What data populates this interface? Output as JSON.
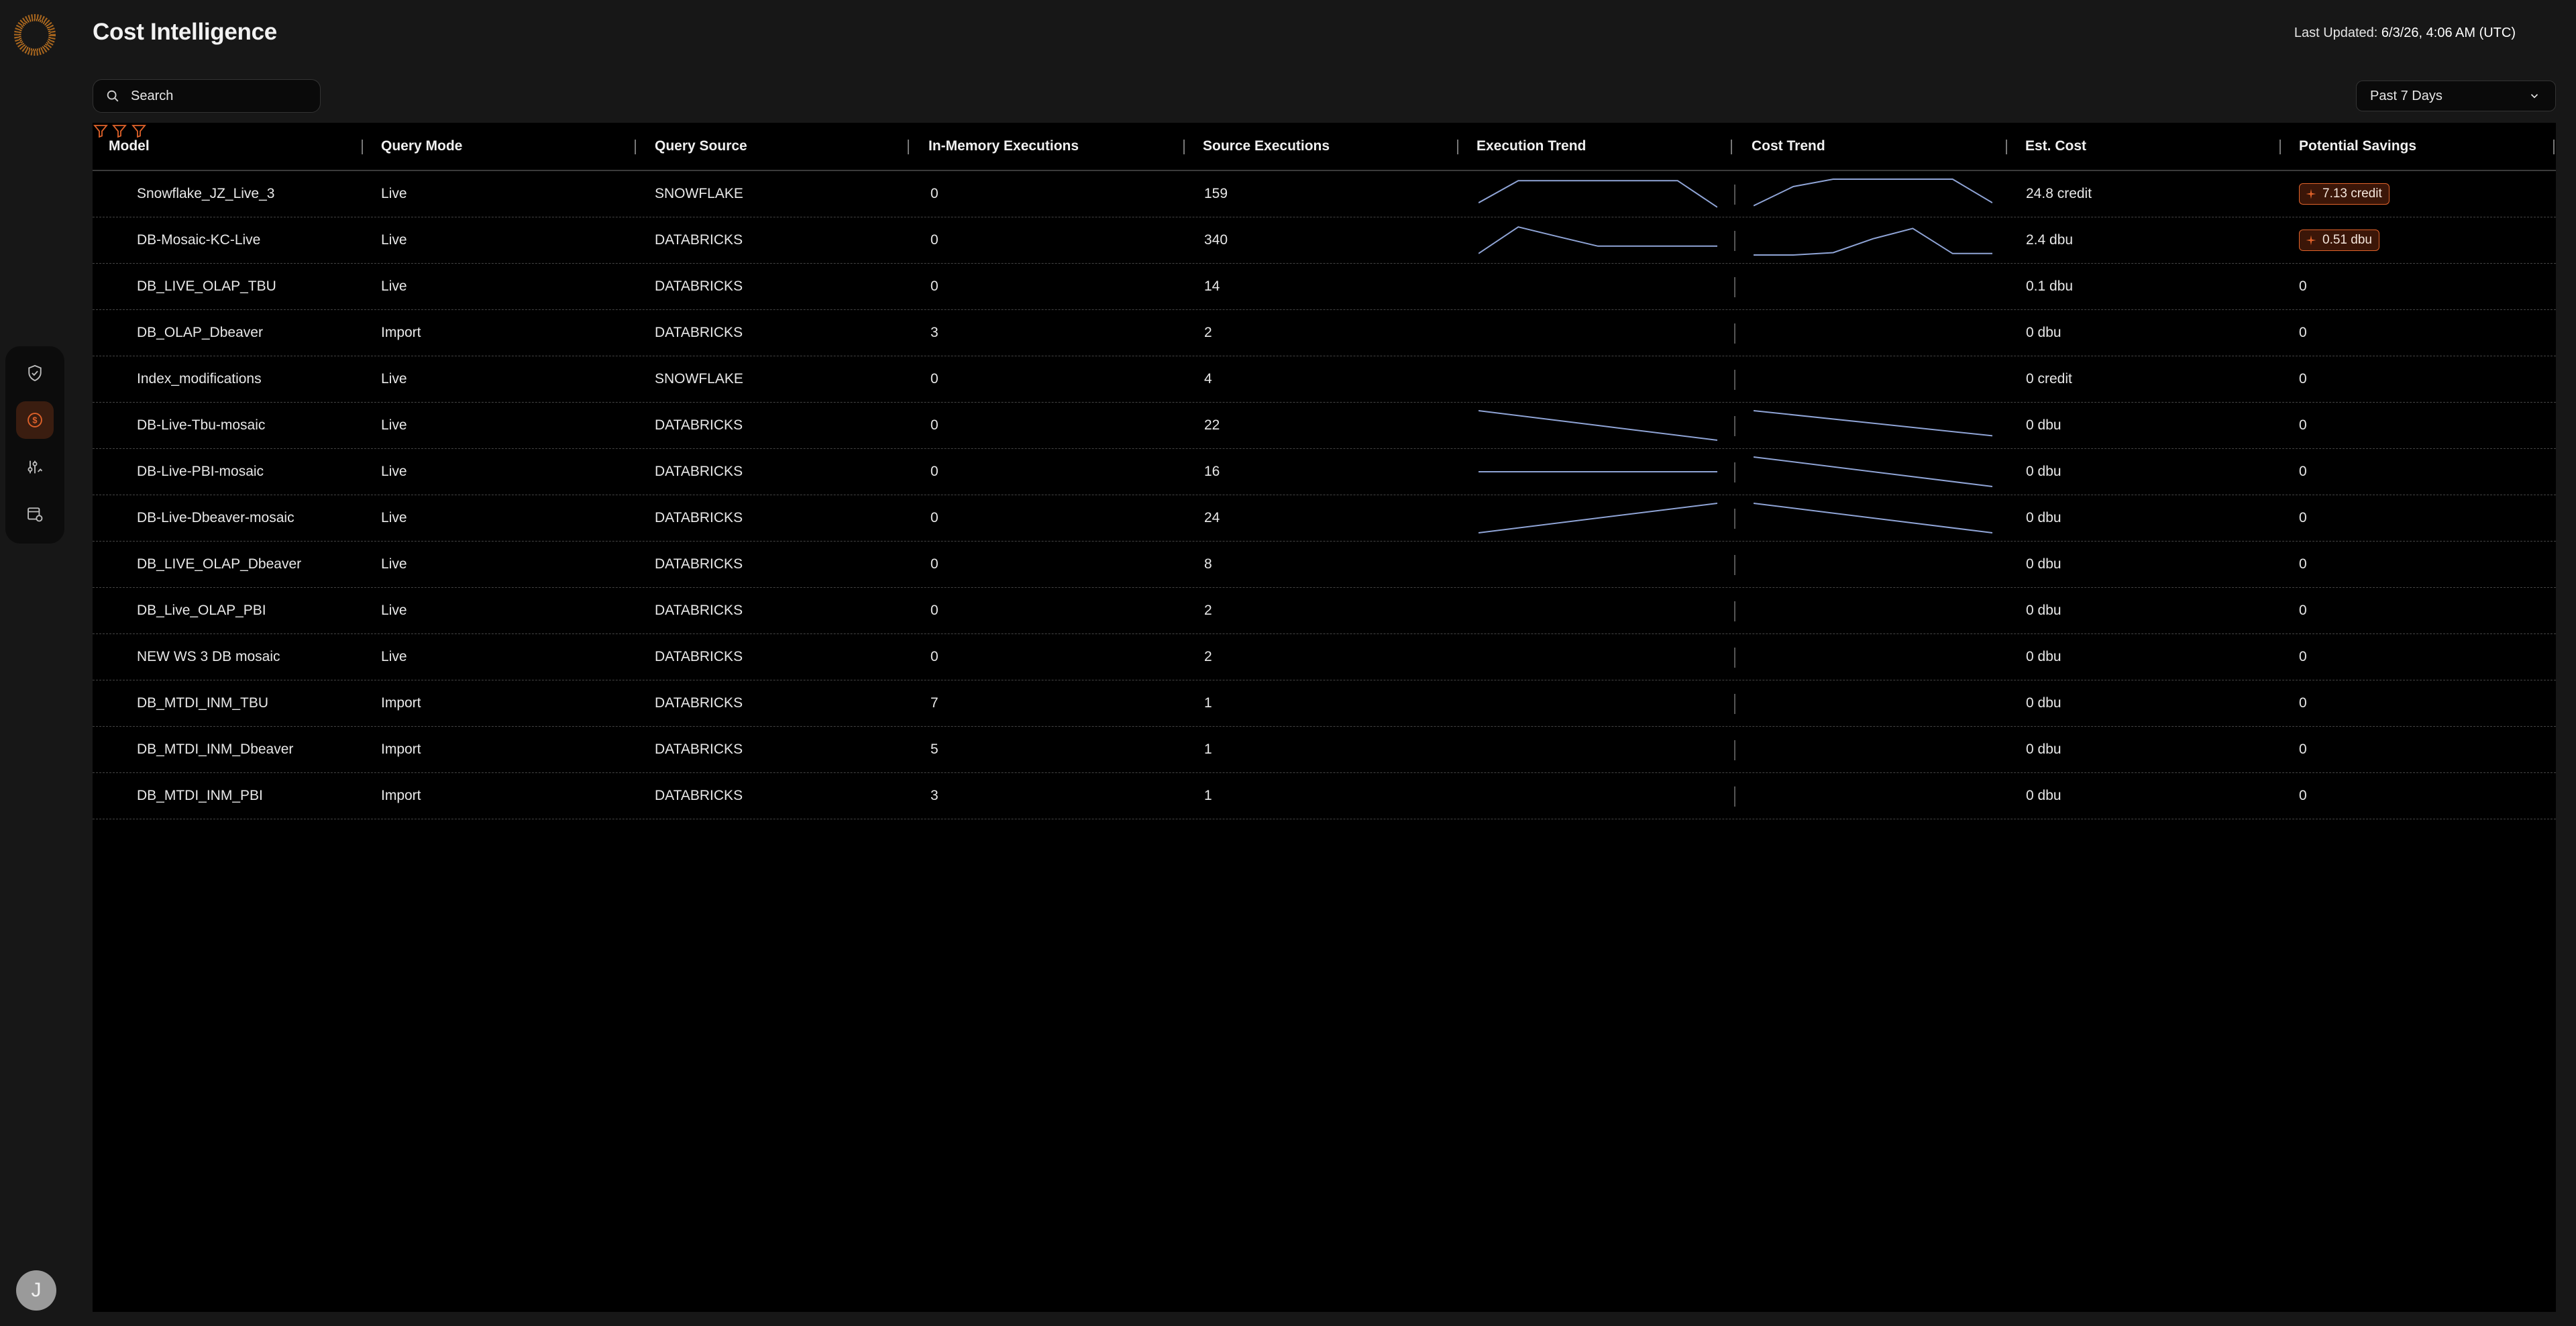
{
  "header": {
    "title": "Cost Intelligence",
    "last_updated_label": "Last Updated:",
    "last_updated_value": "6/3/26, 4:06 AM (UTC)"
  },
  "search": {
    "placeholder": "Search"
  },
  "range": {
    "selected": "Past 7 Days"
  },
  "user": {
    "initial": "J"
  },
  "colors": {
    "accent": "#e0622a",
    "sparkline": "#8fa4d6",
    "background": "#000000"
  },
  "nav": [
    {
      "icon": "shield-check-icon"
    },
    {
      "icon": "dollar-coin-icon",
      "active": true
    },
    {
      "icon": "sliders-icon"
    },
    {
      "icon": "report-settings-icon"
    }
  ],
  "table": {
    "columns": [
      "Model",
      "Query Mode",
      "Query Source",
      "In-Memory Executions",
      "Source Executions",
      "Execution Trend",
      "Cost Trend",
      "Est. Cost",
      "Potential Savings"
    ],
    "rows": [
      {
        "model": "Snowflake_JZ_Live_3",
        "mode": "Live",
        "source": "SNOWFLAKE",
        "inmem": "0",
        "srcexec": "159",
        "cost": "24.8 credit",
        "savings": "7.13 credit",
        "savings_badge": true,
        "exec_trend": [
          0.2,
          0.95,
          0.95,
          0.95,
          0.95,
          0.95,
          0.05
        ],
        "cost_trend": [
          0.1,
          0.75,
          1.0,
          1.0,
          1.0,
          1.0,
          0.2
        ]
      },
      {
        "model": "DB-Mosaic-KC-Live",
        "mode": "Live",
        "source": "DATABRICKS",
        "inmem": "0",
        "srcexec": "340",
        "cost": "2.4 dbu",
        "savings": "0.51 dbu",
        "savings_badge": true,
        "exec_trend": [
          0.05,
          0.95,
          0.62,
          0.3,
          0.3,
          0.3,
          0.3
        ],
        "cost_trend": [
          0.0,
          0.0,
          0.08,
          0.55,
          0.9,
          0.05,
          0.05
        ]
      },
      {
        "model": "DB_LIVE_OLAP_TBU",
        "mode": "Live",
        "source": "DATABRICKS",
        "inmem": "0",
        "srcexec": "14",
        "cost": "0.1 dbu",
        "savings": "0",
        "savings_badge": false,
        "exec_trend": [],
        "cost_trend": []
      },
      {
        "model": "DB_OLAP_Dbeaver",
        "mode": "Import",
        "source": "DATABRICKS",
        "inmem": "3",
        "srcexec": "2",
        "cost": "0 dbu",
        "savings": "0",
        "savings_badge": false,
        "exec_trend": [],
        "cost_trend": []
      },
      {
        "model": "Index_modifications",
        "mode": "Live",
        "source": "SNOWFLAKE",
        "inmem": "0",
        "srcexec": "4",
        "cost": "0 credit",
        "savings": "0",
        "savings_badge": false,
        "exec_trend": [],
        "cost_trend": []
      },
      {
        "model": "DB-Live-Tbu-mosaic",
        "mode": "Live",
        "source": "DATABRICKS",
        "inmem": "0",
        "srcexec": "22",
        "cost": "0 dbu",
        "savings": "0",
        "savings_badge": false,
        "exec_trend": [
          1.0,
          0.0
        ],
        "cost_trend": [
          1.0,
          0.15
        ]
      },
      {
        "model": "DB-Live-PBI-mosaic",
        "mode": "Live",
        "source": "DATABRICKS",
        "inmem": "0",
        "srcexec": "16",
        "cost": "0 dbu",
        "savings": "0",
        "savings_badge": false,
        "exec_trend": [
          0.5,
          0.5
        ],
        "cost_trend": [
          1.0,
          0.0
        ]
      },
      {
        "model": "DB-Live-Dbeaver-mosaic",
        "mode": "Live",
        "source": "DATABRICKS",
        "inmem": "0",
        "srcexec": "24",
        "cost": "0 dbu",
        "savings": "0",
        "savings_badge": false,
        "exec_trend": [
          0.0,
          1.0
        ],
        "cost_trend": [
          1.0,
          0.0
        ]
      },
      {
        "model": "DB_LIVE_OLAP_Dbeaver",
        "mode": "Live",
        "source": "DATABRICKS",
        "inmem": "0",
        "srcexec": "8",
        "cost": "0 dbu",
        "savings": "0",
        "savings_badge": false,
        "exec_trend": [],
        "cost_trend": []
      },
      {
        "model": "DB_Live_OLAP_PBI",
        "mode": "Live",
        "source": "DATABRICKS",
        "inmem": "0",
        "srcexec": "2",
        "cost": "0 dbu",
        "savings": "0",
        "savings_badge": false,
        "exec_trend": [],
        "cost_trend": []
      },
      {
        "model": "NEW WS 3 DB mosaic",
        "mode": "Live",
        "source": "DATABRICKS",
        "inmem": "0",
        "srcexec": "2",
        "cost": "0 dbu",
        "savings": "0",
        "savings_badge": false,
        "exec_trend": [],
        "cost_trend": []
      },
      {
        "model": "DB_MTDI_INM_TBU",
        "mode": "Import",
        "source": "DATABRICKS",
        "inmem": "7",
        "srcexec": "1",
        "cost": "0 dbu",
        "savings": "0",
        "savings_badge": false,
        "exec_trend": [],
        "cost_trend": []
      },
      {
        "model": "DB_MTDI_INM_Dbeaver",
        "mode": "Import",
        "source": "DATABRICKS",
        "inmem": "5",
        "srcexec": "1",
        "cost": "0 dbu",
        "savings": "0",
        "savings_badge": false,
        "exec_trend": [],
        "cost_trend": []
      },
      {
        "model": "DB_MTDI_INM_PBI",
        "mode": "Import",
        "source": "DATABRICKS",
        "inmem": "3",
        "srcexec": "1",
        "cost": "0 dbu",
        "savings": "0",
        "savings_badge": false,
        "exec_trend": [],
        "cost_trend": []
      }
    ]
  }
}
